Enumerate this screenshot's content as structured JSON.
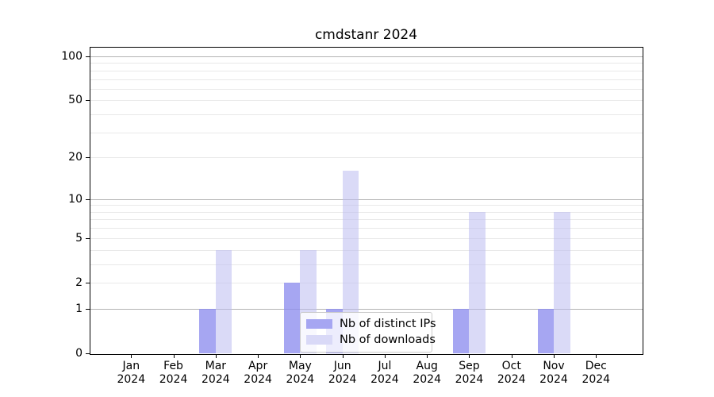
{
  "title": "cmdstanr 2024",
  "colors": {
    "ips_bar": "rgba(144,144,239,0.8)",
    "downloads_bar": "rgba(187,187,241,0.55)",
    "ips_swatch": "#a6a6f2",
    "downloads_swatch": "#d9d9f7",
    "grid_major": "#b3b3b3",
    "grid_minor": "#e9e9e9",
    "axis": "#000000"
  },
  "legend": {
    "items": [
      {
        "label": "Nb of distinct IPs",
        "swatch_color": "#a6a6f2"
      },
      {
        "label": "Nb of downloads",
        "swatch_color": "#d9d9f7"
      }
    ]
  },
  "x_axis": {
    "categories": [
      "Jan",
      "Feb",
      "Mar",
      "Apr",
      "May",
      "Jun",
      "Jul",
      "Aug",
      "Sep",
      "Oct",
      "Nov",
      "Dec"
    ],
    "year": "2024"
  },
  "y_axis": {
    "tick_labels": [
      0,
      1,
      2,
      5,
      10,
      20,
      50,
      100
    ]
  },
  "chart_data": {
    "type": "bar",
    "title": "cmdstanr 2024",
    "categories": [
      "Jan 2024",
      "Feb 2024",
      "Mar 2024",
      "Apr 2024",
      "May 2024",
      "Jun 2024",
      "Jul 2024",
      "Aug 2024",
      "Sep 2024",
      "Oct 2024",
      "Nov 2024",
      "Dec 2024"
    ],
    "series": [
      {
        "name": "Nb of distinct IPs",
        "values": [
          0,
          0,
          1,
          0,
          2,
          1,
          0,
          0,
          1,
          0,
          1,
          0
        ]
      },
      {
        "name": "Nb of downloads",
        "values": [
          0,
          0,
          4,
          0,
          4,
          16,
          0,
          0,
          8,
          0,
          8,
          0
        ]
      }
    ],
    "xlabel": "",
    "ylabel": "",
    "y_scale": "log1p",
    "y_ticks": [
      0,
      1,
      2,
      5,
      10,
      20,
      50,
      100
    ],
    "y_minor_gridlines": [
      2,
      3,
      4,
      5,
      6,
      7,
      8,
      9,
      20,
      30,
      40,
      50,
      60,
      70,
      80,
      90
    ],
    "y_major_gridlines": [
      1,
      10,
      100
    ],
    "ylim": [
      0,
      116
    ],
    "grid": true,
    "legend_position": "lower center"
  }
}
